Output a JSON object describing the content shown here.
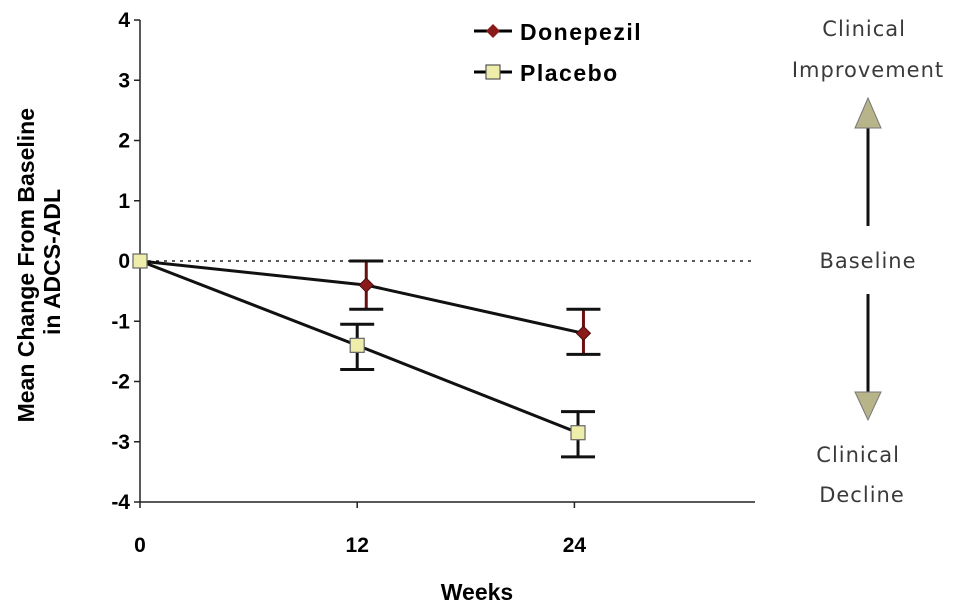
{
  "chart_data": {
    "type": "line",
    "x": [
      0,
      12,
      24
    ],
    "xticks": [
      "0",
      "12",
      "24"
    ],
    "xlabel": "Weeks",
    "ylabel_lines": [
      "Mean Change From Baseline",
      "in ADCS-ADL"
    ],
    "ylim": [
      -4,
      4
    ],
    "yticks": [
      "4",
      "3",
      "2",
      "1",
      "0",
      "-1",
      "-2",
      "-3",
      "-4"
    ],
    "baseline_value": 0,
    "legend_position": "top-center",
    "series": [
      {
        "name": "Donepezil",
        "marker": "diamond",
        "color": "#8b1a1a",
        "x": [
          0,
          12.5,
          24.5
        ],
        "values": [
          0,
          -0.4,
          -1.2
        ],
        "err_low": [
          0,
          -0.8,
          -1.55
        ],
        "err_high": [
          0,
          0,
          -0.8
        ]
      },
      {
        "name": "Placebo",
        "marker": "square",
        "color": "#eeeeaa",
        "x": [
          0,
          12,
          24.2
        ],
        "values": [
          0,
          -1.4,
          -2.85
        ],
        "err_low": [
          0,
          -1.8,
          -3.25
        ],
        "err_high": [
          0,
          -1.05,
          -2.5
        ]
      }
    ],
    "annotations": {
      "top_lines": [
        "Clinical",
        "Improvement"
      ],
      "middle": "Baseline",
      "bottom_lines": [
        "Clinical",
        "Decline"
      ]
    }
  }
}
